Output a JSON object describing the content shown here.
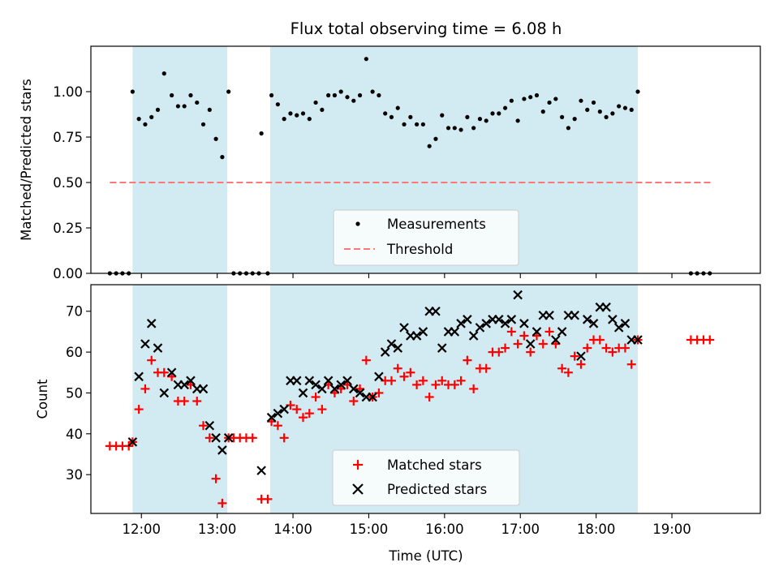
{
  "figure": {
    "title": "Flux total observing time = 6.08 h",
    "xlabel": "Time (UTC)",
    "x_ticks": [
      "12:00",
      "13:00",
      "14:00",
      "15:00",
      "16:00",
      "17:00",
      "18:00",
      "19:00"
    ]
  },
  "chart_data": [
    {
      "type": "scatter",
      "ylabel": "Matched/Predicted stars",
      "xlim": [
        "11:20",
        "20:10"
      ],
      "ylim": [
        0,
        1.25
      ],
      "y_ticks": [
        "0.00",
        "0.25",
        "0.50",
        "0.75",
        "1.00"
      ],
      "shaded_intervals": [
        [
          "11:53",
          "13:08"
        ],
        [
          "13:42",
          "18:33"
        ]
      ],
      "shade_color": "#add8e6",
      "legend": {
        "placement": "lower-center",
        "entries": [
          "Measurements",
          "Threshold"
        ]
      },
      "threshold": {
        "name": "Threshold",
        "y": 0.5,
        "x_range": [
          "11:35",
          "19:33"
        ],
        "color": "#ff6666"
      },
      "series": [
        {
          "name": "Measurements",
          "color": "#000000",
          "points": [
            [
              "11:35",
              0
            ],
            [
              "11:40",
              0
            ],
            [
              "11:45",
              0
            ],
            [
              "11:50",
              0
            ],
            [
              "11:53",
              1.0
            ],
            [
              "11:58",
              0.85
            ],
            [
              "12:03",
              0.82
            ],
            [
              "12:08",
              0.86
            ],
            [
              "12:13",
              0.9
            ],
            [
              "12:18",
              1.1
            ],
            [
              "12:24",
              0.98
            ],
            [
              "12:29",
              0.92
            ],
            [
              "12:34",
              0.92
            ],
            [
              "12:39",
              0.98
            ],
            [
              "12:44",
              0.94
            ],
            [
              "12:49",
              0.82
            ],
            [
              "12:54",
              0.9
            ],
            [
              "12:59",
              0.74
            ],
            [
              "13:04",
              0.64
            ],
            [
              "13:09",
              1.0
            ],
            [
              "13:13",
              0
            ],
            [
              "13:18",
              0
            ],
            [
              "13:23",
              0
            ],
            [
              "13:28",
              0
            ],
            [
              "13:33",
              0
            ],
            [
              "13:35",
              0.77
            ],
            [
              "13:40",
              0
            ],
            [
              "13:43",
              0.98
            ],
            [
              "13:48",
              0.93
            ],
            [
              "13:53",
              0.85
            ],
            [
              "13:58",
              0.88
            ],
            [
              "14:03",
              0.87
            ],
            [
              "14:08",
              0.88
            ],
            [
              "14:13",
              0.85
            ],
            [
              "14:18",
              0.94
            ],
            [
              "14:23",
              0.9
            ],
            [
              "14:28",
              0.98
            ],
            [
              "14:33",
              0.98
            ],
            [
              "14:38",
              1.0
            ],
            [
              "14:43",
              0.97
            ],
            [
              "14:48",
              0.95
            ],
            [
              "14:53",
              0.98
            ],
            [
              "14:58",
              1.18
            ],
            [
              "15:03",
              1.0
            ],
            [
              "15:08",
              0.98
            ],
            [
              "15:13",
              0.88
            ],
            [
              "15:18",
              0.86
            ],
            [
              "15:23",
              0.91
            ],
            [
              "15:28",
              0.82
            ],
            [
              "15:33",
              0.86
            ],
            [
              "15:38",
              0.82
            ],
            [
              "15:43",
              0.82
            ],
            [
              "15:48",
              0.7
            ],
            [
              "15:53",
              0.74
            ],
            [
              "15:58",
              0.87
            ],
            [
              "16:03",
              0.8
            ],
            [
              "16:08",
              0.8
            ],
            [
              "16:13",
              0.79
            ],
            [
              "16:18",
              0.86
            ],
            [
              "16:23",
              0.8
            ],
            [
              "16:28",
              0.85
            ],
            [
              "16:33",
              0.84
            ],
            [
              "16:38",
              0.88
            ],
            [
              "16:43",
              0.88
            ],
            [
              "16:48",
              0.91
            ],
            [
              "16:53",
              0.95
            ],
            [
              "16:58",
              0.84
            ],
            [
              "17:03",
              0.96
            ],
            [
              "17:08",
              0.97
            ],
            [
              "17:13",
              0.98
            ],
            [
              "17:18",
              0.89
            ],
            [
              "17:23",
              0.94
            ],
            [
              "17:28",
              0.96
            ],
            [
              "17:33",
              0.86
            ],
            [
              "17:38",
              0.8
            ],
            [
              "17:43",
              0.85
            ],
            [
              "17:48",
              0.95
            ],
            [
              "17:53",
              0.9
            ],
            [
              "17:58",
              0.94
            ],
            [
              "18:03",
              0.89
            ],
            [
              "18:08",
              0.86
            ],
            [
              "18:13",
              0.88
            ],
            [
              "18:18",
              0.92
            ],
            [
              "18:23",
              0.91
            ],
            [
              "18:28",
              0.9
            ],
            [
              "18:33",
              1.0
            ],
            [
              "19:15",
              0
            ],
            [
              "19:20",
              0
            ],
            [
              "19:25",
              0
            ],
            [
              "19:30",
              0
            ]
          ]
        }
      ]
    },
    {
      "type": "scatter",
      "ylabel": "Count",
      "xlim": [
        "11:20",
        "20:10"
      ],
      "ylim": [
        20.5,
        76.5
      ],
      "y_ticks": [
        "30",
        "40",
        "50",
        "60",
        "70"
      ],
      "shaded_intervals": [
        [
          "11:53",
          "13:08"
        ],
        [
          "13:42",
          "18:33"
        ]
      ],
      "shade_color": "#add8e6",
      "legend": {
        "placement": "lower-center",
        "entries": [
          "Matched stars",
          "Predicted stars"
        ]
      },
      "series": [
        {
          "name": "Matched stars",
          "color": "#ff0000",
          "marker": "plus",
          "points": [
            [
              "11:35",
              37
            ],
            [
              "11:40",
              37
            ],
            [
              "11:45",
              37
            ],
            [
              "11:50",
              37
            ],
            [
              "11:53",
              38
            ],
            [
              "11:58",
              46
            ],
            [
              "12:03",
              51
            ],
            [
              "12:08",
              58
            ],
            [
              "12:13",
              55
            ],
            [
              "12:18",
              55
            ],
            [
              "12:24",
              54
            ],
            [
              "12:29",
              48
            ],
            [
              "12:34",
              48
            ],
            [
              "12:39",
              52
            ],
            [
              "12:44",
              48
            ],
            [
              "12:49",
              42
            ],
            [
              "12:54",
              39
            ],
            [
              "12:59",
              29
            ],
            [
              "13:04",
              23
            ],
            [
              "13:09",
              39
            ],
            [
              "13:13",
              39
            ],
            [
              "13:18",
              39
            ],
            [
              "13:23",
              39
            ],
            [
              "13:28",
              39
            ],
            [
              "13:35",
              24
            ],
            [
              "13:40",
              24
            ],
            [
              "13:43",
              43
            ],
            [
              "13:48",
              42
            ],
            [
              "13:53",
              39
            ],
            [
              "13:58",
              47
            ],
            [
              "14:03",
              46
            ],
            [
              "14:08",
              44
            ],
            [
              "14:13",
              45
            ],
            [
              "14:18",
              49
            ],
            [
              "14:23",
              46
            ],
            [
              "14:28",
              52
            ],
            [
              "14:33",
              50
            ],
            [
              "14:38",
              51
            ],
            [
              "14:43",
              52
            ],
            [
              "14:48",
              48
            ],
            [
              "14:53",
              51
            ],
            [
              "14:58",
              58
            ],
            [
              "15:03",
              49
            ],
            [
              "15:08",
              50
            ],
            [
              "15:13",
              53
            ],
            [
              "15:18",
              53
            ],
            [
              "15:23",
              56
            ],
            [
              "15:28",
              54
            ],
            [
              "15:33",
              55
            ],
            [
              "15:38",
              52
            ],
            [
              "15:43",
              53
            ],
            [
              "15:48",
              49
            ],
            [
              "15:53",
              52
            ],
            [
              "15:58",
              53
            ],
            [
              "16:03",
              52
            ],
            [
              "16:08",
              52
            ],
            [
              "16:13",
              53
            ],
            [
              "16:18",
              58
            ],
            [
              "16:23",
              51
            ],
            [
              "16:28",
              56
            ],
            [
              "16:33",
              56
            ],
            [
              "16:38",
              60
            ],
            [
              "16:43",
              60
            ],
            [
              "16:48",
              61
            ],
            [
              "16:53",
              65
            ],
            [
              "16:58",
              62
            ],
            [
              "17:03",
              64
            ],
            [
              "17:08",
              60
            ],
            [
              "17:13",
              64
            ],
            [
              "17:18",
              62
            ],
            [
              "17:23",
              65
            ],
            [
              "17:28",
              62
            ],
            [
              "17:33",
              56
            ],
            [
              "17:38",
              55
            ],
            [
              "17:43",
              59
            ],
            [
              "17:48",
              57
            ],
            [
              "17:53",
              61
            ],
            [
              "17:58",
              63
            ],
            [
              "18:03",
              63
            ],
            [
              "18:08",
              61
            ],
            [
              "18:13",
              60
            ],
            [
              "18:18",
              61
            ],
            [
              "18:23",
              61
            ],
            [
              "18:28",
              57
            ],
            [
              "18:33",
              63
            ],
            [
              "19:15",
              63
            ],
            [
              "19:20",
              63
            ],
            [
              "19:25",
              63
            ],
            [
              "19:30",
              63
            ]
          ]
        },
        {
          "name": "Predicted stars",
          "color": "#000000",
          "marker": "x",
          "points": [
            [
              "11:53",
              38
            ],
            [
              "11:58",
              54
            ],
            [
              "12:03",
              62
            ],
            [
              "12:08",
              67
            ],
            [
              "12:13",
              61
            ],
            [
              "12:18",
              50
            ],
            [
              "12:24",
              55
            ],
            [
              "12:29",
              52
            ],
            [
              "12:34",
              52
            ],
            [
              "12:39",
              53
            ],
            [
              "12:44",
              51
            ],
            [
              "12:49",
              51
            ],
            [
              "12:54",
              42
            ],
            [
              "12:59",
              39
            ],
            [
              "13:04",
              36
            ],
            [
              "13:09",
              39
            ],
            [
              "13:35",
              31
            ],
            [
              "13:43",
              44
            ],
            [
              "13:48",
              45
            ],
            [
              "13:53",
              46
            ],
            [
              "13:58",
              53
            ],
            [
              "14:03",
              53
            ],
            [
              "14:08",
              50
            ],
            [
              "14:13",
              53
            ],
            [
              "14:18",
              52
            ],
            [
              "14:23",
              51
            ],
            [
              "14:28",
              53
            ],
            [
              "14:33",
              51
            ],
            [
              "14:38",
              52
            ],
            [
              "14:43",
              53
            ],
            [
              "14:48",
              51
            ],
            [
              "14:53",
              50
            ],
            [
              "14:58",
              49
            ],
            [
              "15:03",
              49
            ],
            [
              "15:08",
              54
            ],
            [
              "15:13",
              60
            ],
            [
              "15:18",
              62
            ],
            [
              "15:23",
              61
            ],
            [
              "15:28",
              66
            ],
            [
              "15:33",
              64
            ],
            [
              "15:38",
              64
            ],
            [
              "15:43",
              65
            ],
            [
              "15:48",
              70
            ],
            [
              "15:53",
              70
            ],
            [
              "15:58",
              61
            ],
            [
              "16:03",
              65
            ],
            [
              "16:08",
              65
            ],
            [
              "16:13",
              67
            ],
            [
              "16:18",
              68
            ],
            [
              "16:23",
              64
            ],
            [
              "16:28",
              66
            ],
            [
              "16:33",
              67
            ],
            [
              "16:38",
              68
            ],
            [
              "16:43",
              68
            ],
            [
              "16:48",
              67
            ],
            [
              "16:53",
              68
            ],
            [
              "16:58",
              74
            ],
            [
              "17:03",
              67
            ],
            [
              "17:08",
              62
            ],
            [
              "17:13",
              65
            ],
            [
              "17:18",
              69
            ],
            [
              "17:23",
              69
            ],
            [
              "17:28",
              63
            ],
            [
              "17:33",
              65
            ],
            [
              "17:38",
              69
            ],
            [
              "17:43",
              69
            ],
            [
              "17:48",
              59
            ],
            [
              "17:53",
              68
            ],
            [
              "17:58",
              67
            ],
            [
              "18:03",
              71
            ],
            [
              "18:08",
              71
            ],
            [
              "18:13",
              68
            ],
            [
              "18:18",
              66
            ],
            [
              "18:23",
              67
            ],
            [
              "18:28",
              63
            ],
            [
              "18:33",
              63
            ]
          ]
        }
      ]
    }
  ]
}
